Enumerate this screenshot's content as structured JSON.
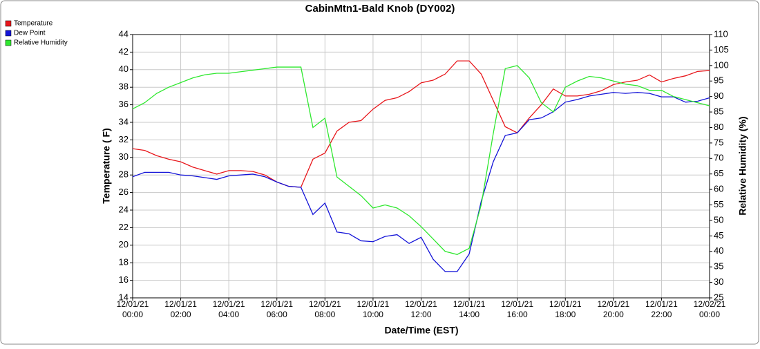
{
  "chart_data": {
    "type": "line",
    "title": "CabinMtn1-Bald Knob (DY002)",
    "xlabel": "Date/Time (EST)",
    "ylabel": "Temperature ( F)",
    "y2label": "Relative Humidity (%)",
    "x": [
      "12/01/21 00:00",
      "12/01/21 00:30",
      "12/01/21 01:00",
      "12/01/21 01:30",
      "12/01/21 02:00",
      "12/01/21 02:30",
      "12/01/21 03:00",
      "12/01/21 03:30",
      "12/01/21 04:00",
      "12/01/21 04:30",
      "12/01/21 05:00",
      "12/01/21 05:30",
      "12/01/21 06:00",
      "12/01/21 06:30",
      "12/01/21 07:00",
      "12/01/21 07:30",
      "12/01/21 08:00",
      "12/01/21 08:30",
      "12/01/21 09:00",
      "12/01/21 09:30",
      "12/01/21 10:00",
      "12/01/21 10:30",
      "12/01/21 11:00",
      "12/01/21 11:30",
      "12/01/21 12:00",
      "12/01/21 12:30",
      "12/01/21 13:00",
      "12/01/21 13:30",
      "12/01/21 14:00",
      "12/01/21 14:30",
      "12/01/21 15:00",
      "12/01/21 15:30",
      "12/01/21 16:00",
      "12/01/21 16:30",
      "12/01/21 17:00",
      "12/01/21 17:30",
      "12/01/21 18:00",
      "12/01/21 18:30",
      "12/01/21 19:00",
      "12/01/21 19:30",
      "12/01/21 20:00",
      "12/01/21 20:30",
      "12/01/21 21:00",
      "12/01/21 21:30",
      "12/01/21 22:00",
      "12/01/21 22:30",
      "12/01/21 23:00",
      "12/01/21 23:30",
      "12/02/21 00:00"
    ],
    "series": [
      {
        "name": "Temperature",
        "color": "#e8161b",
        "values": [
          31,
          30.8,
          30.2,
          29.8,
          29.5,
          28.9,
          28.5,
          28.1,
          28.5,
          28.5,
          28.4,
          28,
          27.2,
          26.7,
          26.6,
          29.8,
          30.5,
          33,
          34,
          34.2,
          35.5,
          36.5,
          36.8,
          37.5,
          38.5,
          38.8,
          39.5,
          41,
          41,
          39.5,
          36.5,
          33.5,
          32.8,
          34.5,
          36,
          37.8,
          37,
          37,
          37.2,
          37.6,
          38.3,
          38.6,
          38.8,
          39.4,
          38.6,
          39,
          39.3,
          39.8,
          39.9
        ]
      },
      {
        "name": "Dew Point",
        "color": "#1414d8",
        "values": [
          27.8,
          28.3,
          28.3,
          28.3,
          28,
          27.9,
          27.7,
          27.5,
          27.9,
          28,
          28.1,
          27.8,
          27.2,
          26.7,
          26.6,
          23.5,
          24.8,
          21.5,
          21.3,
          20.5,
          20.4,
          21,
          21.2,
          20.2,
          20.9,
          18.4,
          17,
          17,
          19,
          25,
          29.5,
          32.5,
          32.8,
          34.3,
          34.5,
          35.2,
          36.3,
          36.6,
          37,
          37.2,
          37.4,
          37.3,
          37.4,
          37.3,
          36.9,
          36.9,
          36.3,
          36.4,
          36.8
        ]
      },
      {
        "name": "Relative Humidity",
        "color": "#2ee82e",
        "axis": "y2",
        "values": [
          86,
          88,
          91,
          93,
          94.5,
          96,
          97,
          97.5,
          97.5,
          98,
          98.5,
          99,
          99.5,
          99.5,
          99.5,
          80,
          83,
          64,
          61,
          58,
          54,
          55,
          54,
          51.5,
          48,
          44,
          40,
          39,
          41,
          55,
          78,
          99,
          100,
          96,
          88,
          85,
          93,
          95,
          96.5,
          96,
          95,
          94,
          93.5,
          92,
          92,
          90,
          89,
          88,
          87
        ]
      }
    ],
    "xlim": [
      "12/01/21 00:00",
      "12/02/21 00:00"
    ],
    "xticks": [
      "12/01/21 00:00",
      "12/01/21 02:00",
      "12/01/21 04:00",
      "12/01/21 06:00",
      "12/01/21 08:00",
      "12/01/21 10:00",
      "12/01/21 12:00",
      "12/01/21 14:00",
      "12/01/21 16:00",
      "12/01/21 18:00",
      "12/01/21 20:00",
      "12/01/21 22:00",
      "12/02/21 00:00"
    ],
    "ylim": [
      14,
      44
    ],
    "yticks": [
      14,
      16,
      18,
      20,
      22,
      24,
      26,
      28,
      30,
      32,
      34,
      36,
      38,
      40,
      42,
      44
    ],
    "y2lim": [
      25,
      110
    ],
    "y2ticks": [
      25,
      30,
      35,
      40,
      45,
      50,
      55,
      60,
      65,
      70,
      75,
      80,
      85,
      90,
      95,
      100,
      105,
      110
    ],
    "grid": true,
    "legend": "top-left"
  }
}
